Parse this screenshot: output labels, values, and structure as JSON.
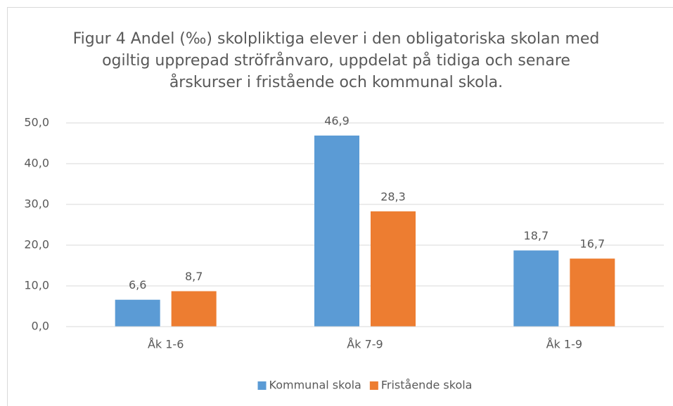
{
  "chart_data": {
    "type": "bar",
    "title": "Figur 4 Andel (‰) skolpliktiga elever i den obligatoriska skolan med ogiltig upprepad ströfrånvaro, uppdelat på tidiga och senare årskurser i fristående och kommunal skola.",
    "categories": [
      "Åk 1-6",
      "Åk 7-9",
      "Åk 1-9"
    ],
    "series": [
      {
        "name": "Kommunal skola",
        "color": "#5b9bd5",
        "values": [
          6.6,
          46.9,
          18.7
        ],
        "value_labels": [
          "6,6",
          "46,9",
          "18,7"
        ]
      },
      {
        "name": "Fristående skola",
        "color": "#ed7d31",
        "values": [
          8.7,
          28.3,
          16.7
        ],
        "value_labels": [
          "8,7",
          "28,3",
          "16,7"
        ]
      }
    ],
    "ylim": [
      0,
      50
    ],
    "yticks": [
      {
        "value": 0,
        "label": "0,0"
      },
      {
        "value": 10,
        "label": "10,0"
      },
      {
        "value": 20,
        "label": "20,0"
      },
      {
        "value": 30,
        "label": "30,0"
      },
      {
        "value": 40,
        "label": "40,0"
      },
      {
        "value": 50,
        "label": "50,0"
      }
    ],
    "grid": true,
    "legend": "bottom"
  }
}
